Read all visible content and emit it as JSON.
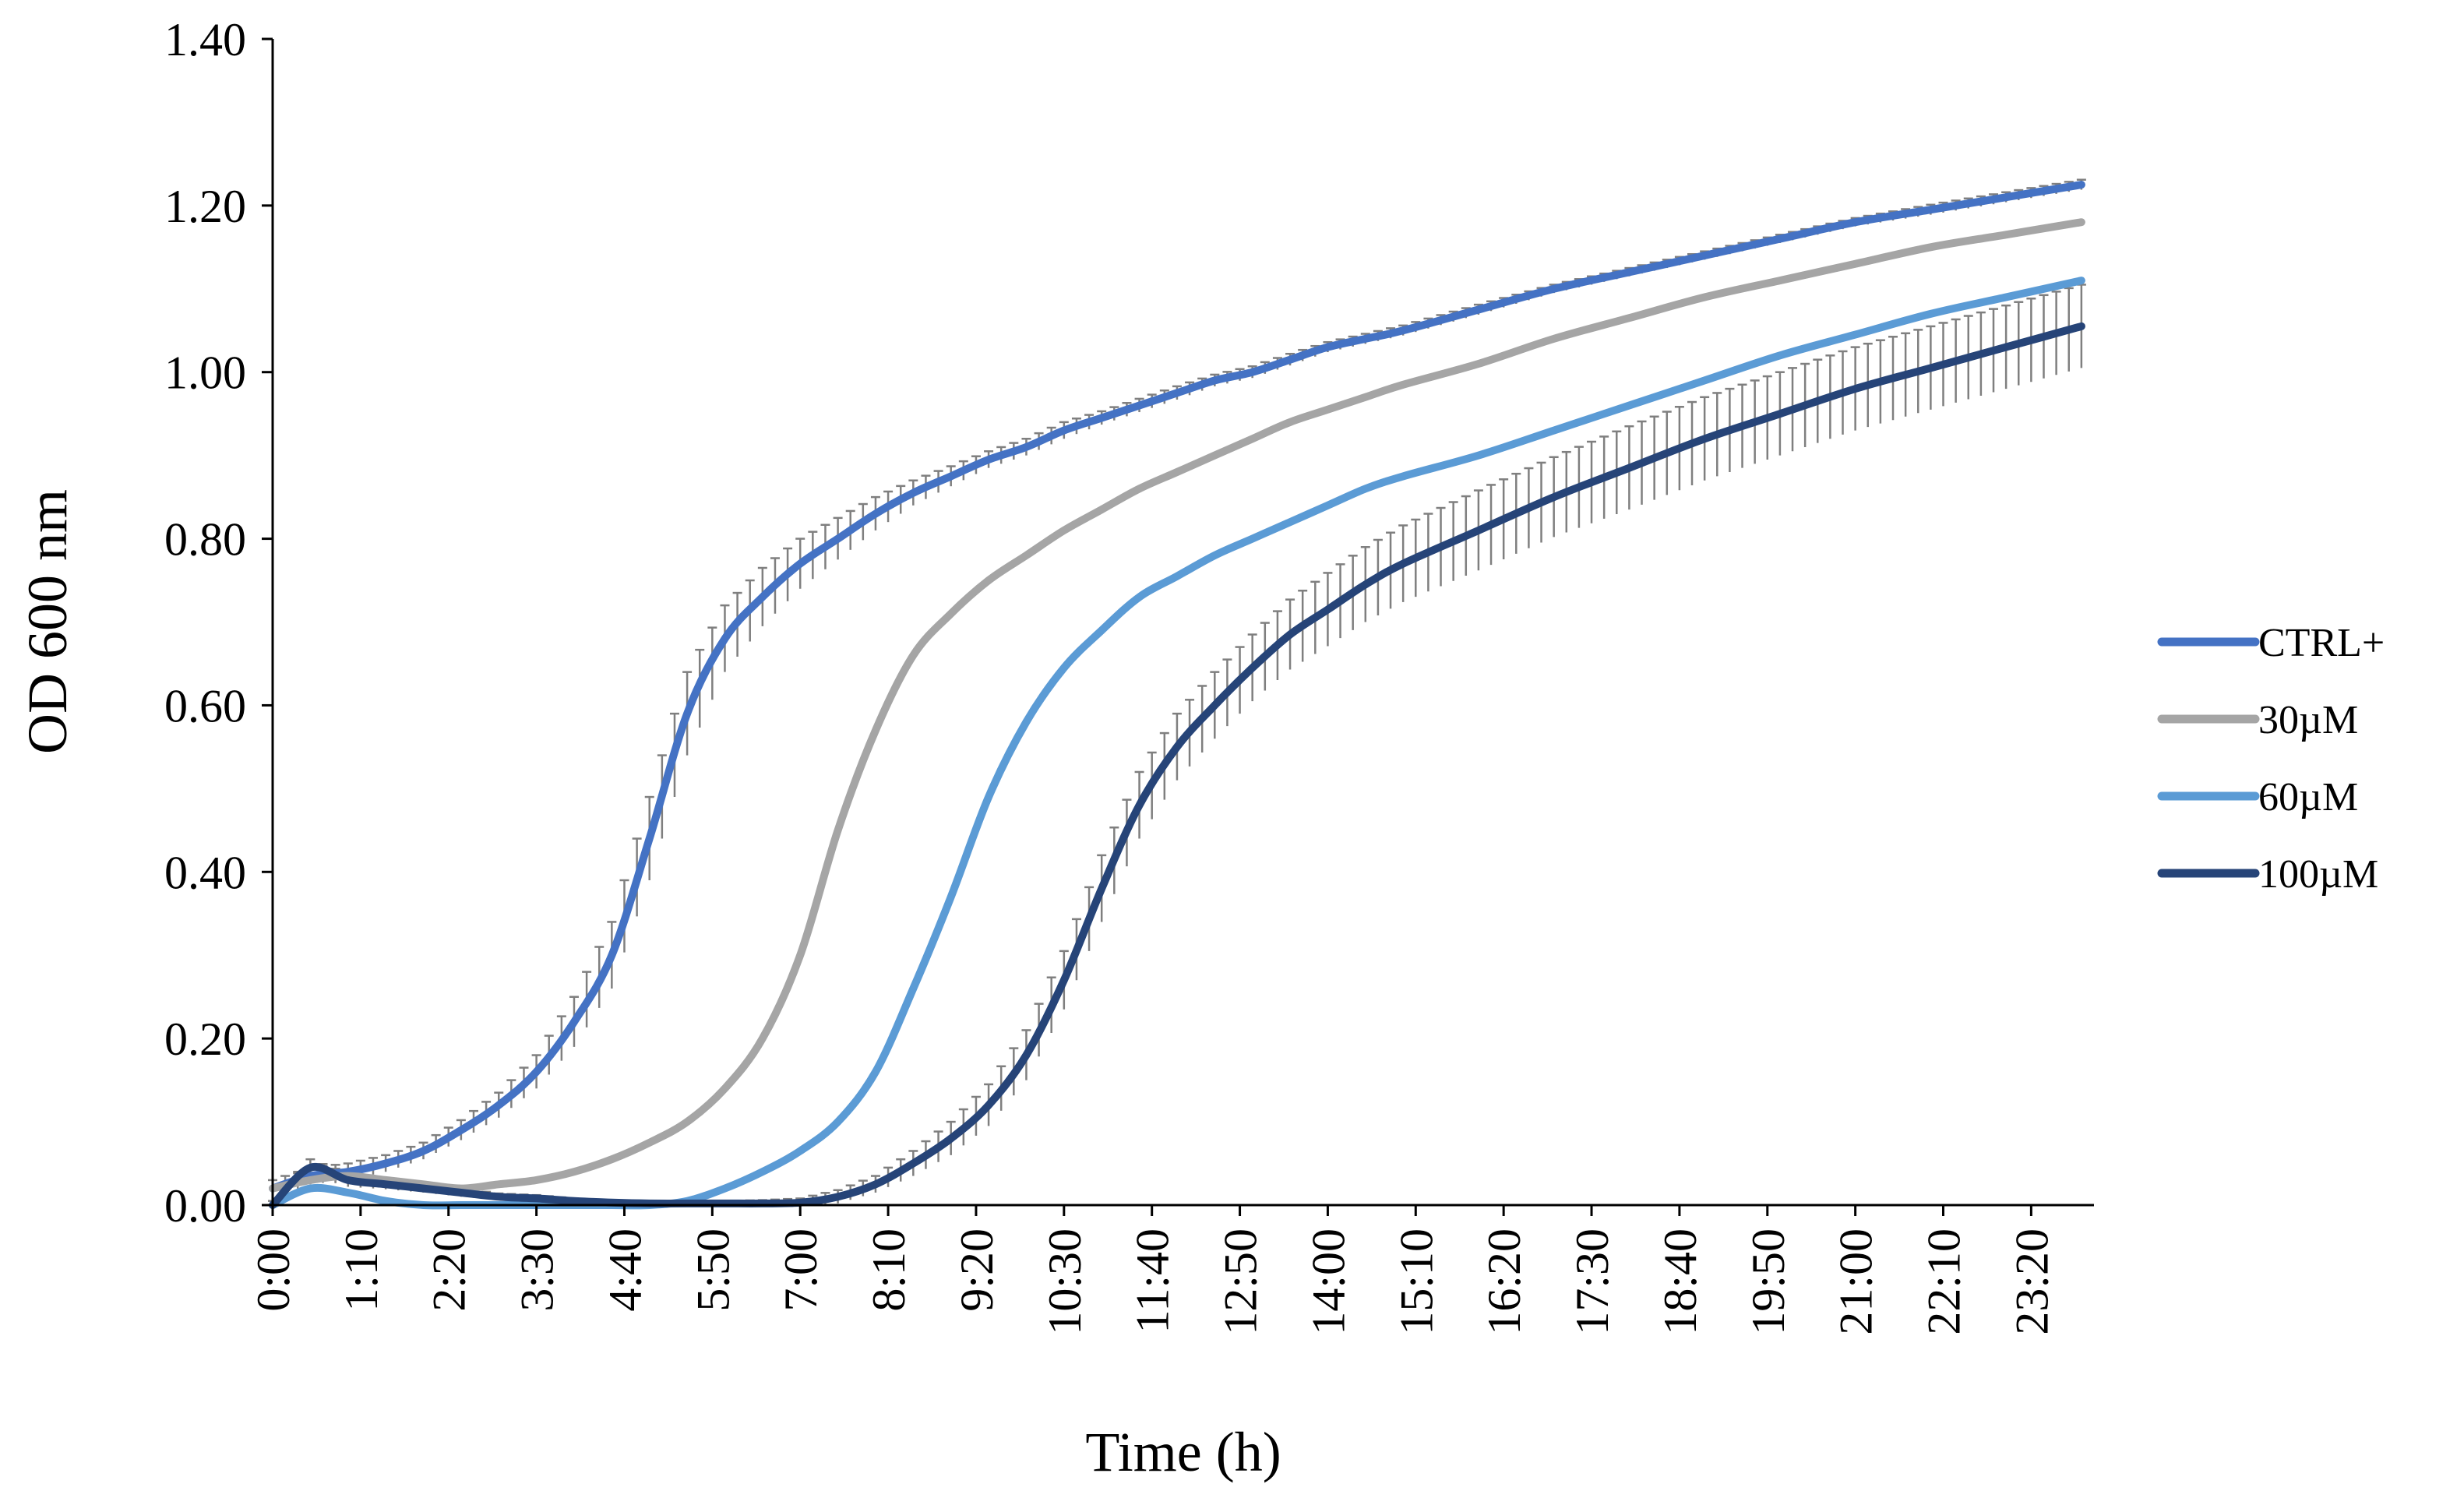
{
  "chart_data": {
    "type": "line",
    "title": "",
    "xlabel": "Time (h)",
    "ylabel": "OD 600 nm",
    "ylim": [
      0,
      1.4
    ],
    "xlim_minutes": [
      0,
      1450
    ],
    "x_tick_labels": [
      "0:00",
      "1:10",
      "2:20",
      "3:30",
      "4:40",
      "5:50",
      "7:00",
      "8:10",
      "9:20",
      "10:30",
      "11:40",
      "12:50",
      "14:00",
      "15:10",
      "16:20",
      "17:30",
      "18:40",
      "19:50",
      "21:00",
      "22:10",
      "23:20"
    ],
    "y_tick_labels": [
      "0.00",
      "0.20",
      "0.40",
      "0.60",
      "0.80",
      "1.00",
      "1.20",
      "1.40"
    ],
    "y_ticks": [
      0,
      0.2,
      0.4,
      0.6,
      0.8,
      1.0,
      1.2,
      1.4
    ],
    "grid": false,
    "legend_position": "right",
    "x_minutes": [
      0,
      30,
      60,
      90,
      120,
      150,
      180,
      210,
      240,
      270,
      300,
      330,
      360,
      390,
      420,
      450,
      480,
      510,
      540,
      570,
      600,
      630,
      660,
      690,
      720,
      750,
      780,
      810,
      840,
      870,
      900,
      960,
      1020,
      1080,
      1140,
      1200,
      1260,
      1320,
      1380,
      1440
    ],
    "series": [
      {
        "name": "CTRL+",
        "color": "#4472c4",
        "values": [
          0.02,
          0.035,
          0.04,
          0.05,
          0.065,
          0.09,
          0.12,
          0.16,
          0.22,
          0.3,
          0.44,
          0.59,
          0.68,
          0.73,
          0.77,
          0.8,
          0.83,
          0.855,
          0.875,
          0.895,
          0.91,
          0.93,
          0.945,
          0.96,
          0.975,
          0.99,
          1.0,
          1.015,
          1.03,
          1.04,
          1.05,
          1.075,
          1.1,
          1.12,
          1.14,
          1.16,
          1.18,
          1.195,
          1.21,
          1.225
        ],
        "errors": [
          0.01,
          0.01,
          0.01,
          0.01,
          0.01,
          0.012,
          0.015,
          0.02,
          0.03,
          0.04,
          0.05,
          0.05,
          0.04,
          0.035,
          0.03,
          0.025,
          0.02,
          0.015,
          0.012,
          0.01,
          0.01,
          0.01,
          0.008,
          0.008,
          0.008,
          0.007,
          0.007,
          0.007,
          0.006,
          0.006,
          0.006,
          0.006,
          0.005,
          0.005,
          0.005,
          0.005,
          0.005,
          0.006,
          0.006,
          0.006
        ]
      },
      {
        "name": "30µM",
        "color": "#a5a5a5",
        "values": [
          0.02,
          0.03,
          0.035,
          0.03,
          0.025,
          0.02,
          0.025,
          0.03,
          0.04,
          0.055,
          0.075,
          0.1,
          0.14,
          0.2,
          0.3,
          0.45,
          0.57,
          0.66,
          0.71,
          0.75,
          0.78,
          0.81,
          0.835,
          0.86,
          0.88,
          0.9,
          0.92,
          0.94,
          0.955,
          0.97,
          0.985,
          1.01,
          1.04,
          1.065,
          1.09,
          1.11,
          1.13,
          1.15,
          1.165,
          1.18
        ]
      },
      {
        "name": "60µM",
        "color": "#5b9bd5",
        "values": [
          0.0,
          0.02,
          0.015,
          0.005,
          0.0,
          0.0,
          0.0,
          0.0,
          0.0,
          0.0,
          0.0,
          0.005,
          0.02,
          0.04,
          0.065,
          0.1,
          0.16,
          0.26,
          0.37,
          0.49,
          0.58,
          0.645,
          0.69,
          0.73,
          0.755,
          0.78,
          0.8,
          0.82,
          0.84,
          0.86,
          0.875,
          0.9,
          0.93,
          0.96,
          0.99,
          1.02,
          1.045,
          1.07,
          1.09,
          1.11
        ]
      },
      {
        "name": "100µM",
        "color": "#264478",
        "values": [
          0.0,
          0.045,
          0.03,
          0.025,
          0.02,
          0.015,
          0.01,
          0.008,
          0.005,
          0.003,
          0.002,
          0.002,
          0.002,
          0.002,
          0.003,
          0.01,
          0.025,
          0.05,
          0.08,
          0.12,
          0.18,
          0.27,
          0.38,
          0.48,
          0.55,
          0.6,
          0.645,
          0.685,
          0.715,
          0.745,
          0.77,
          0.81,
          0.85,
          0.885,
          0.92,
          0.95,
          0.98,
          1.005,
          1.03,
          1.055
        ],
        "errors": [
          0.005,
          0.01,
          0.008,
          0.006,
          0.005,
          0.005,
          0.004,
          0.004,
          0.003,
          0.003,
          0.003,
          0.003,
          0.003,
          0.004,
          0.005,
          0.008,
          0.01,
          0.015,
          0.02,
          0.025,
          0.03,
          0.035,
          0.04,
          0.04,
          0.04,
          0.04,
          0.04,
          0.042,
          0.044,
          0.045,
          0.046,
          0.048,
          0.048,
          0.05,
          0.05,
          0.05,
          0.05,
          0.05,
          0.05,
          0.05
        ]
      }
    ]
  }
}
